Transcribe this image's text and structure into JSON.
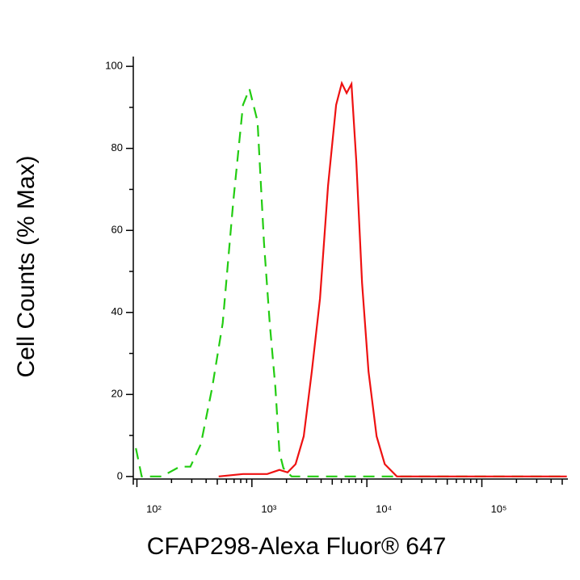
{
  "chart_data": {
    "type": "line",
    "x_label": "CFAP298-Alexa Fluor® 647",
    "y_label": "Cell Counts (% Max)",
    "xscale": "log",
    "xlim": [
      93,
      560000
    ],
    "ylim": [
      -2,
      102
    ],
    "xticks": [
      {
        "value": 100,
        "label": "10²"
      },
      {
        "value": 1000,
        "label": "10³"
      },
      {
        "value": 10000,
        "label": "10⁴"
      },
      {
        "value": 100000,
        "label": "10⁵"
      }
    ],
    "yticks": [
      0,
      20,
      40,
      60,
      80,
      100
    ],
    "grid": false,
    "series": [
      {
        "color": "#22cc11",
        "dash": true,
        "x": [
          98,
          110,
          165,
          236,
          292,
          360,
          452,
          557,
          688,
          837,
          953,
          1120,
          1275,
          1430,
          1600,
          1735,
          1883,
          2215,
          21400,
          548000
        ],
        "values": [
          6.9,
          0,
          0,
          2.4,
          2.4,
          7.9,
          21.7,
          37.4,
          66.9,
          90.6,
          94.5,
          86.6,
          57,
          37.4,
          21.7,
          5.9,
          2,
          0,
          0,
          0
        ]
      },
      {
        "color": "#ee1111",
        "dash": false,
        "x": [
          514,
          837,
          1360,
          1735,
          2042,
          2400,
          2825,
          3320,
          3910,
          4595,
          5400,
          6050,
          6670,
          7350,
          8090,
          9080,
          10330,
          12150,
          14300,
          18240,
          548000
        ],
        "values": [
          0,
          0.6,
          0.6,
          1.6,
          1,
          3,
          9.8,
          25.6,
          43.3,
          70.9,
          90.6,
          95.9,
          93.5,
          95.7,
          76.8,
          47.2,
          25.6,
          9.8,
          3,
          0,
          0
        ]
      }
    ]
  }
}
